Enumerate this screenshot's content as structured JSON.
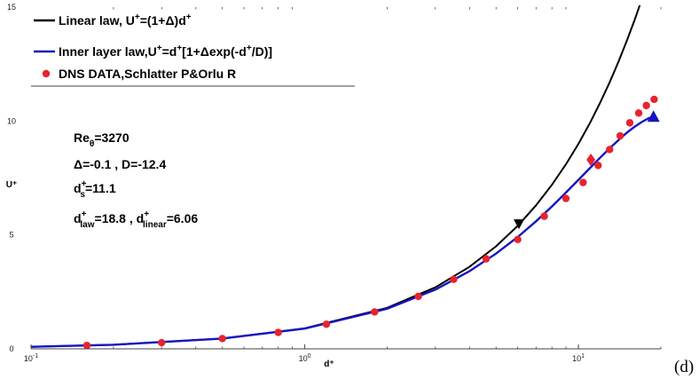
{
  "chart_data": {
    "type": "line",
    "panel_label": "(d)",
    "xscale": "log",
    "xlim": [
      0.1,
      20
    ],
    "ylim": [
      0,
      15
    ],
    "grid": false,
    "xlabel": "d⁺",
    "ylabel": "U⁺",
    "xticks": [
      {
        "value": 0.1,
        "base": "10",
        "exp": "-1"
      },
      {
        "value": 1,
        "base": "10",
        "exp": "0"
      },
      {
        "value": 10,
        "base": "10",
        "exp": "1"
      }
    ],
    "yticks": [
      {
        "value": 0,
        "label": "0"
      },
      {
        "value": 5,
        "label": "5"
      },
      {
        "value": 10,
        "label": "10"
      },
      {
        "value": 15,
        "label": "15"
      }
    ],
    "legend_position": "top-left",
    "legend": [
      {
        "text": "Linear law, U⁺=(1+Δ)d⁺",
        "color": "#000000",
        "kind": "line"
      },
      {
        "text": "Inner layer law,U⁺=d⁺[1+Δexp(-d⁺/D)]",
        "color": "#1515c0",
        "kind": "line"
      },
      {
        "text": "DNS DATA,Schlatter P&Orlu R",
        "color": "#e8232f",
        "kind": "dot"
      }
    ],
    "annotations": [
      {
        "base": "Re",
        "sub": "θ",
        "rest": "=3270"
      },
      {
        "text": "Δ=-0.1 , D=-12.4"
      },
      {
        "base": "d",
        "sup": "+",
        "sub": "s",
        "rest": "=11.1"
      },
      {
        "base": "d",
        "sup": "+",
        "sub": "law",
        "rest": "=18.8 , d",
        "sup2": "+",
        "sub2": "linear",
        "rest2": "=6.06"
      }
    ],
    "series": [
      {
        "kind": "line",
        "color": "#000000",
        "x": [
          0.1,
          0.2,
          0.5,
          1,
          2,
          3,
          4,
          5,
          6,
          7,
          8,
          9,
          10,
          11,
          12,
          13,
          14,
          15,
          16,
          17,
          18,
          18.8
        ],
        "y": [
          0.09,
          0.18,
          0.45,
          0.9,
          1.8,
          2.7,
          3.6,
          4.5,
          5.4,
          6.3,
          7.2,
          8.1,
          9.0,
          9.9,
          10.8,
          11.7,
          12.6,
          13.5,
          14.4,
          15.3,
          16.2,
          16.92
        ],
        "markers": [
          {
            "x": 6.06,
            "y": 5.45,
            "shape": "triangle-down"
          }
        ]
      },
      {
        "kind": "line",
        "color": "#1515c0",
        "x": [
          0.1,
          0.2,
          0.5,
          1,
          2,
          3,
          4,
          5,
          6,
          7,
          8,
          9,
          10,
          11,
          12,
          13,
          14,
          15,
          16,
          17,
          18,
          18.8
        ],
        "y": [
          0.09,
          0.18,
          0.45,
          0.89,
          1.76,
          2.6,
          3.41,
          4.18,
          4.91,
          5.6,
          6.25,
          6.86,
          7.42,
          7.93,
          8.39,
          8.8,
          9.16,
          9.48,
          9.74,
          9.95,
          10.12,
          10.2
        ],
        "markers": [
          {
            "x": 11.1,
            "y": 8.3,
            "shape": "diamond",
            "color": "#e8232f"
          },
          {
            "x": 18.8,
            "y": 10.2,
            "shape": "triangle-up"
          }
        ]
      },
      {
        "kind": "scatter",
        "color": "#e8232f",
        "x": [
          0.16,
          0.3,
          0.5,
          0.8,
          1.2,
          1.8,
          2.6,
          3.5,
          4.6,
          6.0,
          7.5,
          9.0,
          10.4,
          11.8,
          13.0,
          14.2,
          15.4,
          16.6,
          17.7,
          18.9
        ],
        "y": [
          0.15,
          0.27,
          0.45,
          0.72,
          1.08,
          1.62,
          2.3,
          3.05,
          3.95,
          4.8,
          5.82,
          6.6,
          7.3,
          8.05,
          8.75,
          9.35,
          9.92,
          10.35,
          10.68,
          10.95
        ]
      }
    ]
  }
}
